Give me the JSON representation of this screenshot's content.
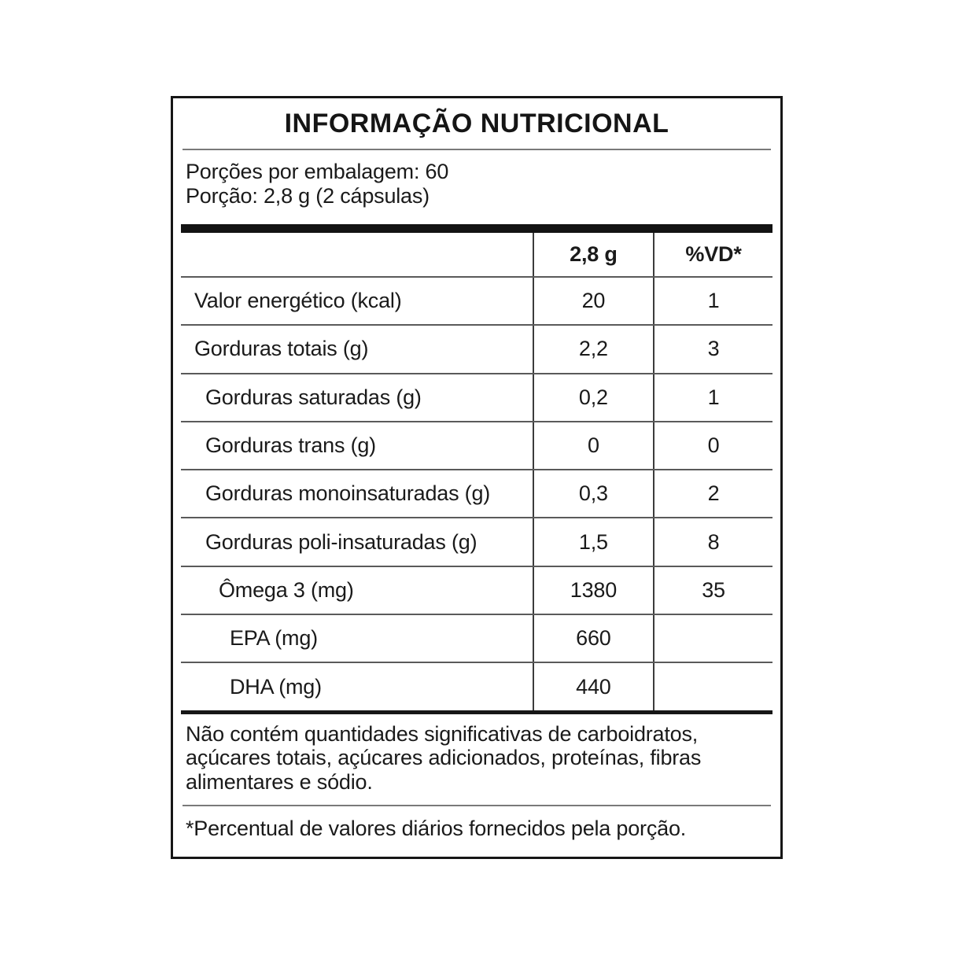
{
  "title": "INFORMAÇÃO NUTRICIONAL",
  "serving_info": {
    "line1": "Porções por embalagem: 60",
    "line2": "Porção: 2,8 g (2 cápsulas)"
  },
  "table": {
    "columns": [
      "",
      "2,8 g",
      "%VD*"
    ],
    "rows": [
      {
        "label": "Valor energético (kcal)",
        "amount": "20",
        "vd": "1"
      },
      {
        "label": "Gorduras totais (g)",
        "amount": "2,2",
        "vd": "3"
      },
      {
        "label": "Gorduras saturadas (g)",
        "amount": "0,2",
        "vd": "1"
      },
      {
        "label": "Gorduras trans (g)",
        "amount": "0",
        "vd": "0"
      },
      {
        "label": "Gorduras monoinsaturadas (g)",
        "amount": "0,3",
        "vd": "2"
      },
      {
        "label": "Gorduras poli-insaturadas (g)",
        "amount": "1,5",
        "vd": "8"
      },
      {
        "label": "Ômega 3 (mg)",
        "amount": "1380",
        "vd": "35"
      },
      {
        "label": "EPA (mg)",
        "amount": "660",
        "vd": ""
      },
      {
        "label": "DHA (mg)",
        "amount": "440",
        "vd": ""
      }
    ]
  },
  "notes": {
    "no_significant": "Não contém quantidades significativas de carboidratos, açúcares totais, açúcares adicionados, proteínas, fibras alimentares e sódio.",
    "footnote": "*Percentual de valores diários fornecidos pela porção."
  },
  "colors": {
    "border": "#161616",
    "thin_rule": "#7a7a7a",
    "row_rule": "#5a5a5a",
    "text": "#1a1a1a"
  }
}
